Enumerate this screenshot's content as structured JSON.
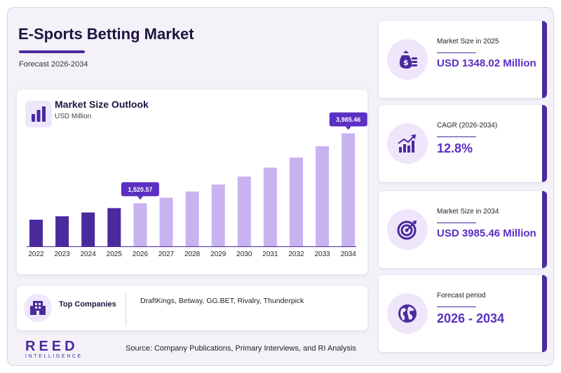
{
  "header": {
    "title": "E-Sports Betting Market",
    "subtitle": "Forecast 2026-2034"
  },
  "chart_card": {
    "title": "Market Size Outlook",
    "unit": "USD Million"
  },
  "chart_data": {
    "type": "bar",
    "title": "Market Size Outlook",
    "ylabel": "USD Million",
    "categories": [
      "2022",
      "2023",
      "2024",
      "2025",
      "2026",
      "2027",
      "2028",
      "2029",
      "2030",
      "2031",
      "2032",
      "2033",
      "2034"
    ],
    "values": [
      940,
      1060,
      1195,
      1348.02,
      1520.57,
      1715,
      1935,
      2182,
      2462,
      2777,
      3132,
      3533,
      3985.46
    ],
    "labeled_points": [
      {
        "category": "2026",
        "label": "1,520.57"
      },
      {
        "category": "2034",
        "label": "3,985.46"
      }
    ],
    "ylim": [
      0,
      4000
    ],
    "grid": false,
    "colors": {
      "historical": "#4b2a9e",
      "forecast": "#c8b3f0",
      "callout": "#5a2fc2",
      "axis": "#4b2a9e"
    },
    "forecast_start_index": 4
  },
  "companies": {
    "label": "Top Companies",
    "list": "DraftKings, Betway, GG.BET, Rivalry, Thunderpick"
  },
  "brand": {
    "name": "REED",
    "tagline": "INTELLIGENCE"
  },
  "source": "Source: Company Publications, Primary Interviews, and RI Analysis",
  "stats": [
    {
      "label": "Market Size in 2025",
      "value": "USD 1348.02 Million",
      "icon": "money-bag-icon"
    },
    {
      "label": "CAGR (2026-2034)",
      "value": "12.8%",
      "icon": "growth-chart-icon"
    },
    {
      "label": "Market Size in 2034",
      "value": "USD 3985.46 Million",
      "icon": "target-icon"
    },
    {
      "label": "Forecast period",
      "value": "2026 - 2034",
      "icon": "globe-icon"
    }
  ],
  "theme": {
    "accent": "#4b2a9e",
    "accent_light": "#efe6fb",
    "value_color": "#5a2fc2"
  }
}
